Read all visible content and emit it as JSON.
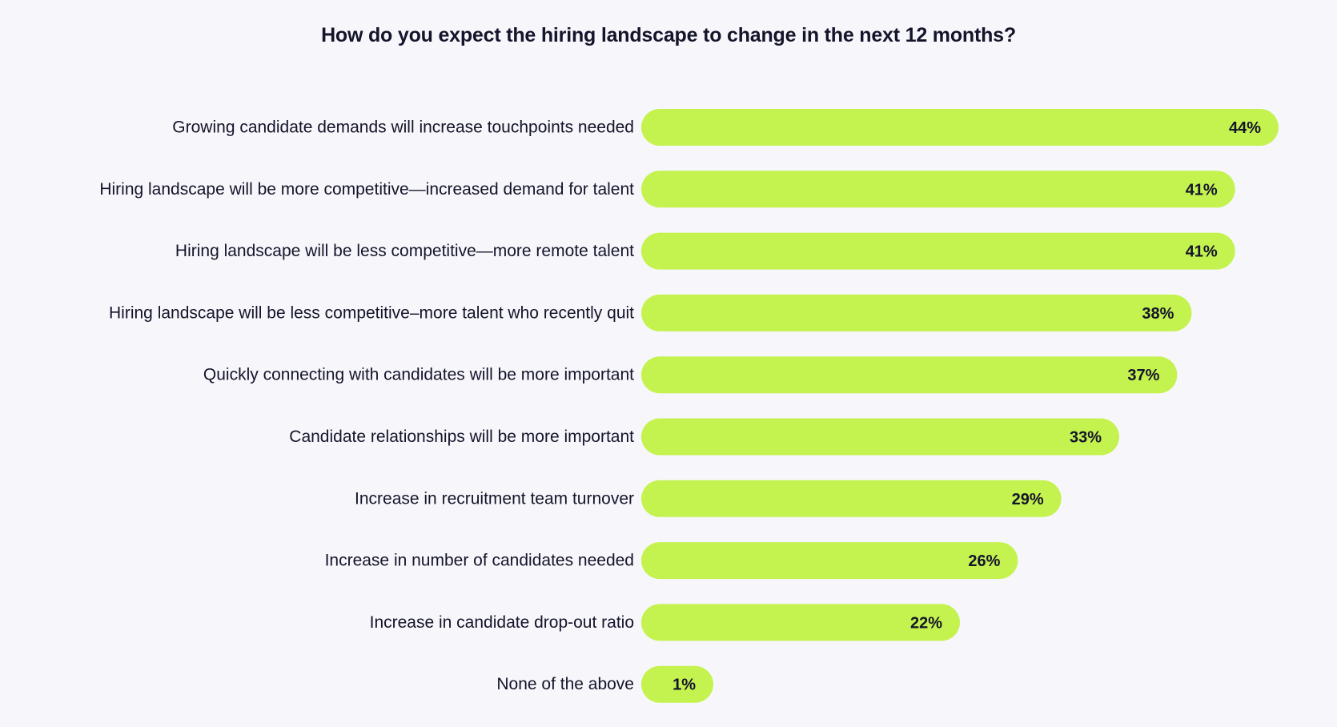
{
  "chart_data": {
    "type": "bar",
    "orientation": "horizontal",
    "title": "How do you expect the hiring landscape to change in the next 12 months?",
    "xlabel": "",
    "ylabel": "",
    "xlim": [
      0,
      44
    ],
    "grid": false,
    "legend": "none",
    "bar_color": "#c4f24f",
    "text_color": "#14142b",
    "background_color": "#f7f7fb",
    "value_suffix": "%",
    "categories": [
      "Growing candidate demands will increase touchpoints needed",
      "Hiring landscape will be more competitive—increased demand for talent",
      "Hiring landscape will be less competitive—more remote talent",
      "Hiring landscape will be less competitive–more talent who recently quit",
      "Quickly connecting with candidates will be more important",
      "Candidate relationships will be more important",
      "Increase in recruitment team turnover",
      "Increase in number of candidates needed",
      "Increase in candidate drop-out ratio",
      "None of the above"
    ],
    "values": [
      44,
      41,
      41,
      38,
      37,
      33,
      29,
      26,
      22,
      1
    ],
    "value_labels": [
      "44%",
      "41%",
      "41%",
      "38%",
      "37%",
      "33%",
      "29%",
      "26%",
      "22%",
      "1%"
    ]
  }
}
